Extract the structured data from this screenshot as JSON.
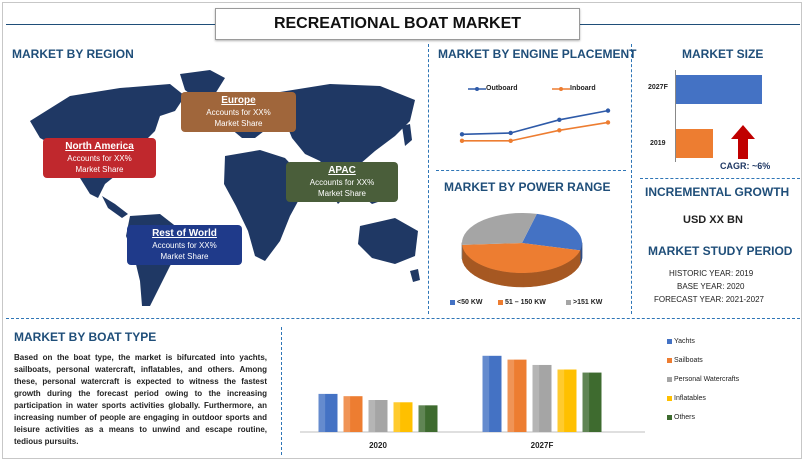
{
  "title": "RECREATIONAL BOAT MARKET",
  "region": {
    "heading": "MARKET BY REGION",
    "boxes": [
      {
        "name": "North America",
        "line1": "Accounts for XX%",
        "line2": "Market Share",
        "color": "#c0282d"
      },
      {
        "name": "Europe",
        "line1": "Accounts for XX%",
        "line2": "Market Share",
        "color": "#a0663b"
      },
      {
        "name": "APAC",
        "line1": "Accounts for XX%",
        "line2": "Market Share",
        "color": "#4a5e3a"
      },
      {
        "name": "Rest of World",
        "line1": "Accounts for XX%",
        "line2": "Market Share",
        "color": "#1f3a8a"
      }
    ]
  },
  "engine": {
    "heading": "MARKET BY ENGINE PLACEMENT",
    "chart_data": {
      "type": "line",
      "series": [
        {
          "name": "Outboard",
          "values": [
            3,
            3.2,
            5.2,
            6.6
          ],
          "color": "#2e5aa8"
        },
        {
          "name": "Inboard",
          "values": [
            2,
            2,
            3.6,
            4.8
          ],
          "color": "#ed7d31"
        }
      ]
    }
  },
  "power": {
    "heading": "MARKET BY POWER RANGE",
    "chart_data": {
      "type": "pie",
      "slices": [
        {
          "name": "<50 KW",
          "value": 25,
          "color": "#4472c4"
        },
        {
          "name": "51 – 150 KW",
          "value": 45,
          "color": "#ed7d31"
        },
        {
          "name": ">151 KW",
          "value": 30,
          "color": "#a5a5a5"
        }
      ]
    }
  },
  "size": {
    "heading": "MARKET SIZE",
    "chart_data": {
      "type": "bar",
      "categories": [
        "2027F",
        "2019"
      ],
      "values": [
        100,
        43
      ],
      "colors": [
        "#4472c4",
        "#ed7d31"
      ]
    },
    "cagr": "CAGR: ~6%",
    "arrow_color": "#c00000"
  },
  "growth": {
    "heading": "INCREMENTAL GROWTH",
    "value": "USD XX BN"
  },
  "study": {
    "heading": "MARKET STUDY PERIOD",
    "lines": [
      "HISTORIC YEAR: 2019",
      "BASE YEAR: 2020",
      "FORECAST YEAR: 2021-2027"
    ]
  },
  "boat": {
    "heading": "MARKET BY BOAT TYPE",
    "paragraph": "Based on the boat type, the market is bifurcated into yachts, sailboats, personal watercraft, inflatables, and others. Among these, personal watercraft is expected to witness the fastest growth during the forecast period owing to the increasing participation in water sports activities globally. Furthermore, an increasing number of people are engaging in outdoor sports and leisure activities as a means to unwind and escape routine, tedious pursuits.",
    "chart_data": {
      "type": "bar",
      "categories": [
        "2020",
        "2027F"
      ],
      "series": [
        {
          "name": "Yachts",
          "values": [
            50,
            100
          ],
          "color": "#4472c4"
        },
        {
          "name": "Sailboats",
          "values": [
            47,
            95
          ],
          "color": "#ed7d31"
        },
        {
          "name": "Personal Watercrafts",
          "values": [
            42,
            88
          ],
          "color": "#a5a5a5"
        },
        {
          "name": "Inflatables",
          "values": [
            39,
            82
          ],
          "color": "#ffc000"
        },
        {
          "name": "Others",
          "values": [
            35,
            78
          ],
          "color": "#3e6b2f"
        }
      ],
      "ylim": [
        0,
        105
      ]
    }
  }
}
